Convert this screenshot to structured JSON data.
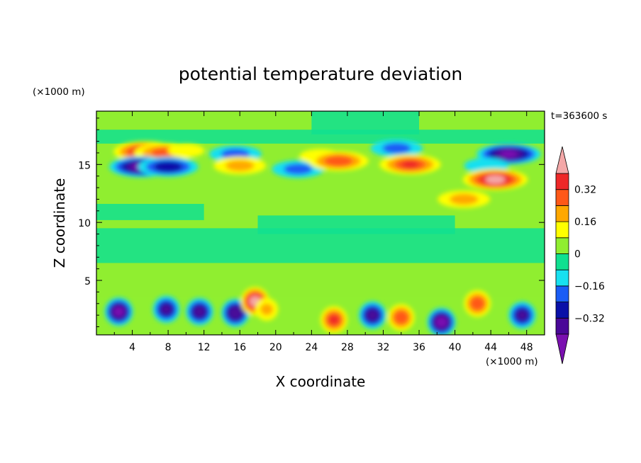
{
  "chart_data": {
    "type": "heatmap",
    "title": "potential temperature deviation",
    "xlabel": "X coordinate",
    "ylabel": "Z coordinate",
    "x_unit": "(×1000 m)",
    "y_unit": "(×1000 m)",
    "time_label": "t=363600 s",
    "xlim": [
      0,
      50
    ],
    "ylim": [
      0.3,
      19.6
    ],
    "x_ticks": [
      4,
      8,
      12,
      16,
      20,
      24,
      28,
      32,
      36,
      40,
      44,
      48
    ],
    "x_tick_labels": [
      "4",
      "8",
      "12",
      "16",
      "20",
      "24",
      "28",
      "32",
      "36",
      "40",
      "44",
      "48"
    ],
    "y_ticks": [
      5,
      10,
      15
    ],
    "y_tick_labels": [
      "5",
      "10",
      "15"
    ],
    "colorbar": {
      "levels": [
        -0.4,
        -0.32,
        -0.24,
        -0.16,
        -0.08,
        0,
        0.08,
        0.16,
        0.24,
        0.32,
        0.4
      ],
      "tick_values": [
        -0.32,
        -0.16,
        0,
        0.16,
        0.32
      ],
      "tick_labels": [
        "−0.32",
        "−0.16",
        "0",
        "0.16",
        "0.32"
      ],
      "colors": [
        "#7a10b0",
        "#4a0898",
        "#0a10a8",
        "#1a5cf5",
        "#18e0f0",
        "#10e090",
        "#90ee30",
        "#ffff00",
        "#ffa800",
        "#ff5818",
        "#ee2828",
        "#f4a8a8"
      ]
    },
    "features": [
      {
        "x": 5.5,
        "z": 16.1,
        "value": 0.4
      },
      {
        "x": 7.5,
        "z": 16.0,
        "value": 0.28
      },
      {
        "x": 10.0,
        "z": 16.2,
        "value": 0.12
      },
      {
        "x": 5.0,
        "z": 14.8,
        "value": -0.4
      },
      {
        "x": 8.0,
        "z": 14.8,
        "value": -0.3
      },
      {
        "x": 15.5,
        "z": 15.9,
        "value": -0.2
      },
      {
        "x": 16.0,
        "z": 14.9,
        "value": 0.2
      },
      {
        "x": 22.5,
        "z": 14.6,
        "value": -0.2
      },
      {
        "x": 25.0,
        "z": 15.7,
        "value": 0.14
      },
      {
        "x": 27.0,
        "z": 15.3,
        "value": 0.3
      },
      {
        "x": 33.5,
        "z": 16.4,
        "value": -0.2
      },
      {
        "x": 35.0,
        "z": 15.0,
        "value": 0.32
      },
      {
        "x": 46.0,
        "z": 15.9,
        "value": -0.4
      },
      {
        "x": 43.5,
        "z": 14.9,
        "value": -0.15
      },
      {
        "x": 44.5,
        "z": 13.7,
        "value": 0.42
      },
      {
        "x": 41.0,
        "z": 12.0,
        "value": 0.2
      },
      {
        "x": 2.5,
        "z": 2.3,
        "value": -0.4
      },
      {
        "x": 7.8,
        "z": 2.5,
        "value": -0.32
      },
      {
        "x": 11.5,
        "z": 2.3,
        "value": -0.34
      },
      {
        "x": 15.5,
        "z": 2.2,
        "value": -0.38
      },
      {
        "x": 17.7,
        "z": 3.2,
        "value": 0.42
      },
      {
        "x": 19.0,
        "z": 2.5,
        "value": 0.18
      },
      {
        "x": 26.5,
        "z": 1.6,
        "value": 0.32
      },
      {
        "x": 30.8,
        "z": 2.0,
        "value": -0.34
      },
      {
        "x": 34.0,
        "z": 1.8,
        "value": 0.3
      },
      {
        "x": 38.5,
        "z": 1.4,
        "value": -0.42
      },
      {
        "x": 42.5,
        "z": 3.0,
        "value": 0.3
      },
      {
        "x": 47.5,
        "z": 2.0,
        "value": -0.32
      }
    ]
  }
}
